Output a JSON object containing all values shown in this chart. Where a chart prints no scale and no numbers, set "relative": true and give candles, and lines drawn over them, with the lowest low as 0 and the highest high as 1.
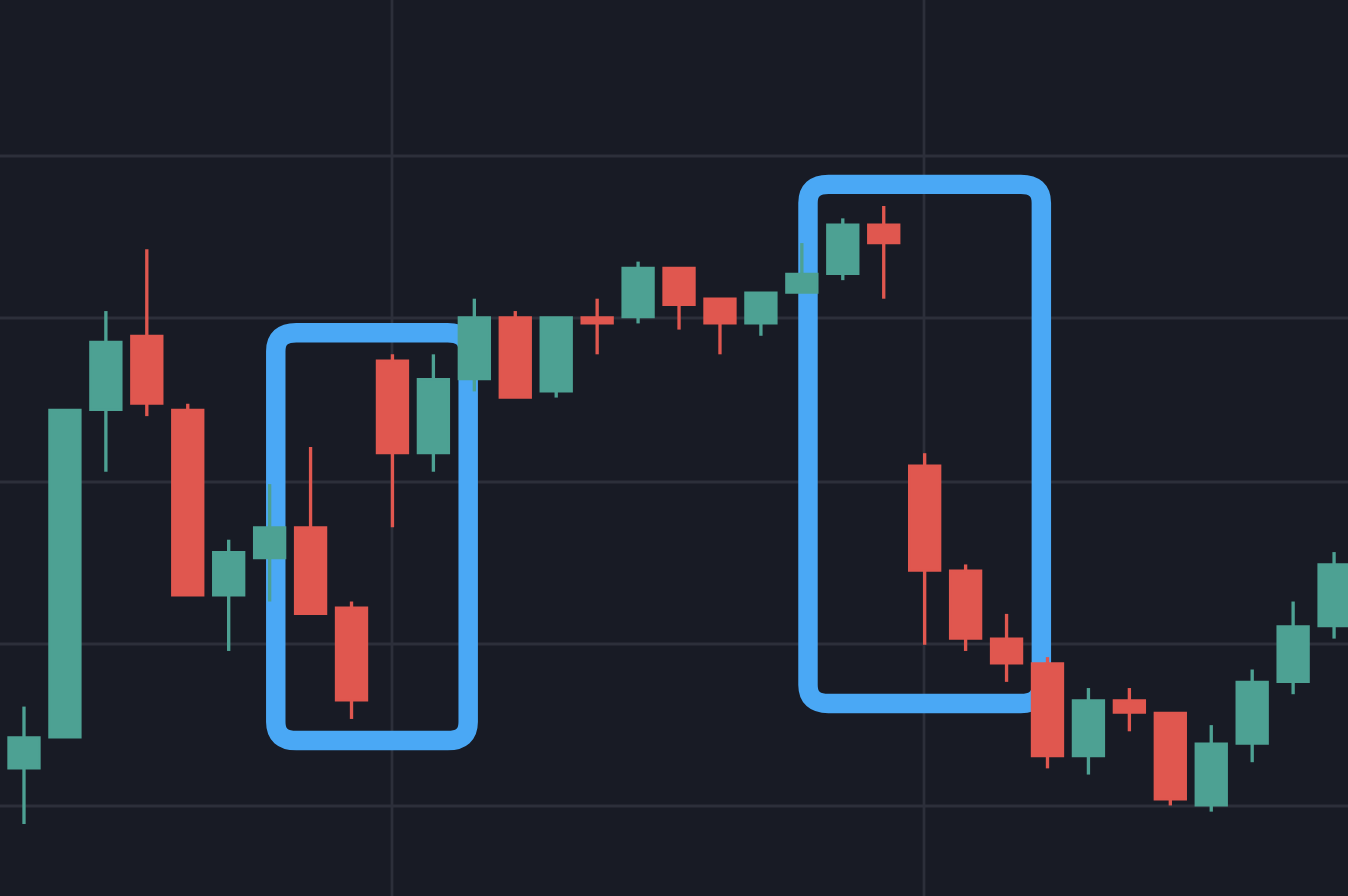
{
  "chart_data": {
    "type": "candlestick",
    "relative": true,
    "grid": true,
    "categories": [
      null,
      null,
      null,
      null,
      null,
      null,
      null,
      null,
      null,
      null,
      null,
      null,
      null,
      null,
      null,
      null,
      null,
      null,
      null,
      null,
      null,
      null,
      null,
      null,
      null,
      null,
      null,
      null,
      null,
      null,
      null,
      null,
      null
    ],
    "colors": [
      "#4da193",
      "#4da193",
      "#4da193",
      "#e0574f",
      "#e0574f",
      "#4da193",
      "#4da193",
      "#e0574f",
      "#e0574f",
      "#e0574f",
      "#4da193",
      "#4da193",
      "#e0574f",
      "#4da193",
      "#e0574f",
      "#4da193",
      "#e0574f",
      "#e0574f",
      "#4da193",
      "#4da193",
      "#4da193",
      "#e0574f",
      "#e0574f",
      "#e0574f",
      "#e0574f",
      "#e0574f",
      "#4da193",
      "#e0574f",
      "#e0574f",
      "#4da193",
      "#4da193",
      "#4da193",
      "#4da193"
    ],
    "ohlc": [
      [
        0.09,
        0.19,
        0,
        0.14
      ],
      [
        0.14,
        0.67,
        0.14,
        0.67
      ],
      [
        0.67,
        0.83,
        0.57,
        0.78
      ],
      [
        0.79,
        0.93,
        0.66,
        0.68
      ],
      [
        0.67,
        0.68,
        0.37,
        0.37
      ],
      [
        0.37,
        0.46,
        0.28,
        0.44
      ],
      [
        0.43,
        0.55,
        0.36,
        0.48
      ],
      [
        0.48,
        0.61,
        0.34,
        0.34
      ],
      [
        0.35,
        0.36,
        0.17,
        0.2
      ],
      [
        0.75,
        0.76,
        0.48,
        0.6
      ],
      [
        0.6,
        0.76,
        0.57,
        0.72
      ],
      [
        0.72,
        0.85,
        0.7,
        0.82
      ],
      [
        0.82,
        0.83,
        0.69,
        0.69
      ],
      [
        0.7,
        0.82,
        0.69,
        0.82
      ],
      [
        0.82,
        0.85,
        0.76,
        0.81
      ],
      [
        0.82,
        0.91,
        0.81,
        0.9
      ],
      [
        0.9,
        0.9,
        0.8,
        0.84
      ],
      [
        0.85,
        0.85,
        0.76,
        0.81
      ],
      [
        0.81,
        0.86,
        0.79,
        0.86
      ],
      [
        0.86,
        0.94,
        0.86,
        0.89
      ],
      [
        0.89,
        0.98,
        0.88,
        0.97
      ],
      [
        0.97,
        1,
        0.85,
        0.94
      ],
      [
        0.58,
        0.6,
        0.29,
        0.41
      ],
      [
        0.41,
        0.42,
        0.28,
        0.3
      ],
      [
        0.3,
        0.34,
        0.23,
        0.26
      ],
      [
        0.26,
        0.27,
        0.09,
        0.11
      ],
      [
        0.11,
        0.22,
        0.08,
        0.2
      ],
      [
        0.2,
        0.22,
        0.15,
        0.18
      ],
      [
        0.18,
        0.18,
        0.03,
        0.04
      ],
      [
        0.03,
        0.16,
        0.02,
        0.13
      ],
      [
        0.13,
        0.25,
        0.1,
        0.23
      ],
      [
        0.23,
        0.36,
        0.21,
        0.32
      ],
      [
        0.32,
        0.44,
        0.3,
        0.42
      ]
    ]
  }
}
